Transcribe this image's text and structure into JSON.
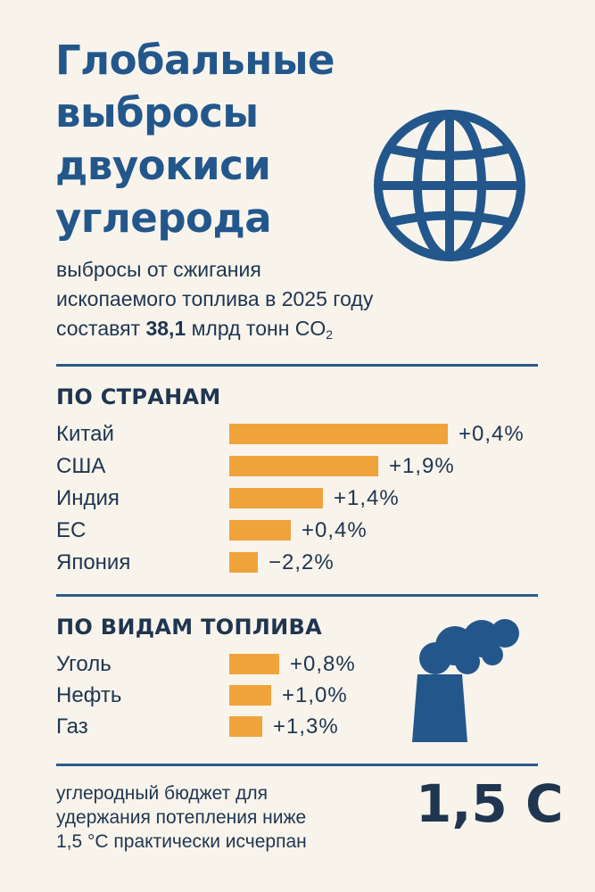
{
  "title": [
    "Глобальные",
    "выбросы",
    "двуокиси",
    "углерода"
  ],
  "subtitle": {
    "line1": "выбросы от сжигания",
    "line2": "ископаемого топлива  в 2025 году",
    "line3_prefix": "составят ",
    "line3_value": "38,1",
    "line3_unit": " млрд тонн CO",
    "line3_sub": "2"
  },
  "countries": {
    "heading": "ПО СТРАНАМ",
    "items": [
      {
        "label": "Китай",
        "change": "+0,4%",
        "bar_fraction": 1.0
      },
      {
        "label": "США",
        "change": "+1,9%",
        "bar_fraction": 0.68
      },
      {
        "label": "Индия",
        "change": "+1,4%",
        "bar_fraction": 0.43
      },
      {
        "label": "ЕС",
        "change": "+0,4%",
        "bar_fraction": 0.28
      },
      {
        "label": "Япония",
        "change": "−2,2%",
        "bar_fraction": 0.13
      }
    ]
  },
  "fuels": {
    "heading": "ПО ВИДАМ ТОПЛИВА",
    "items": [
      {
        "label": "Уголь",
        "change": "+0,8%",
        "bar_fraction": 0.23
      },
      {
        "label": "Нефть",
        "change": "+1,0%",
        "bar_fraction": 0.19
      },
      {
        "label": "Газ",
        "change": "+1,3%",
        "bar_fraction": 0.15
      }
    ]
  },
  "footer": {
    "lines": [
      "углеродный бюджет для",
      "удержания потепления  ниже",
      "1,5 °C практически исчерпан"
    ],
    "big_value": "1,5 C"
  },
  "colors": {
    "title": "#23578c",
    "bar": "#f0a33a",
    "icon": "#23578c",
    "background": "#f8f4ec"
  },
  "icons": [
    "globe-icon",
    "factory-smoke-icon"
  ]
}
